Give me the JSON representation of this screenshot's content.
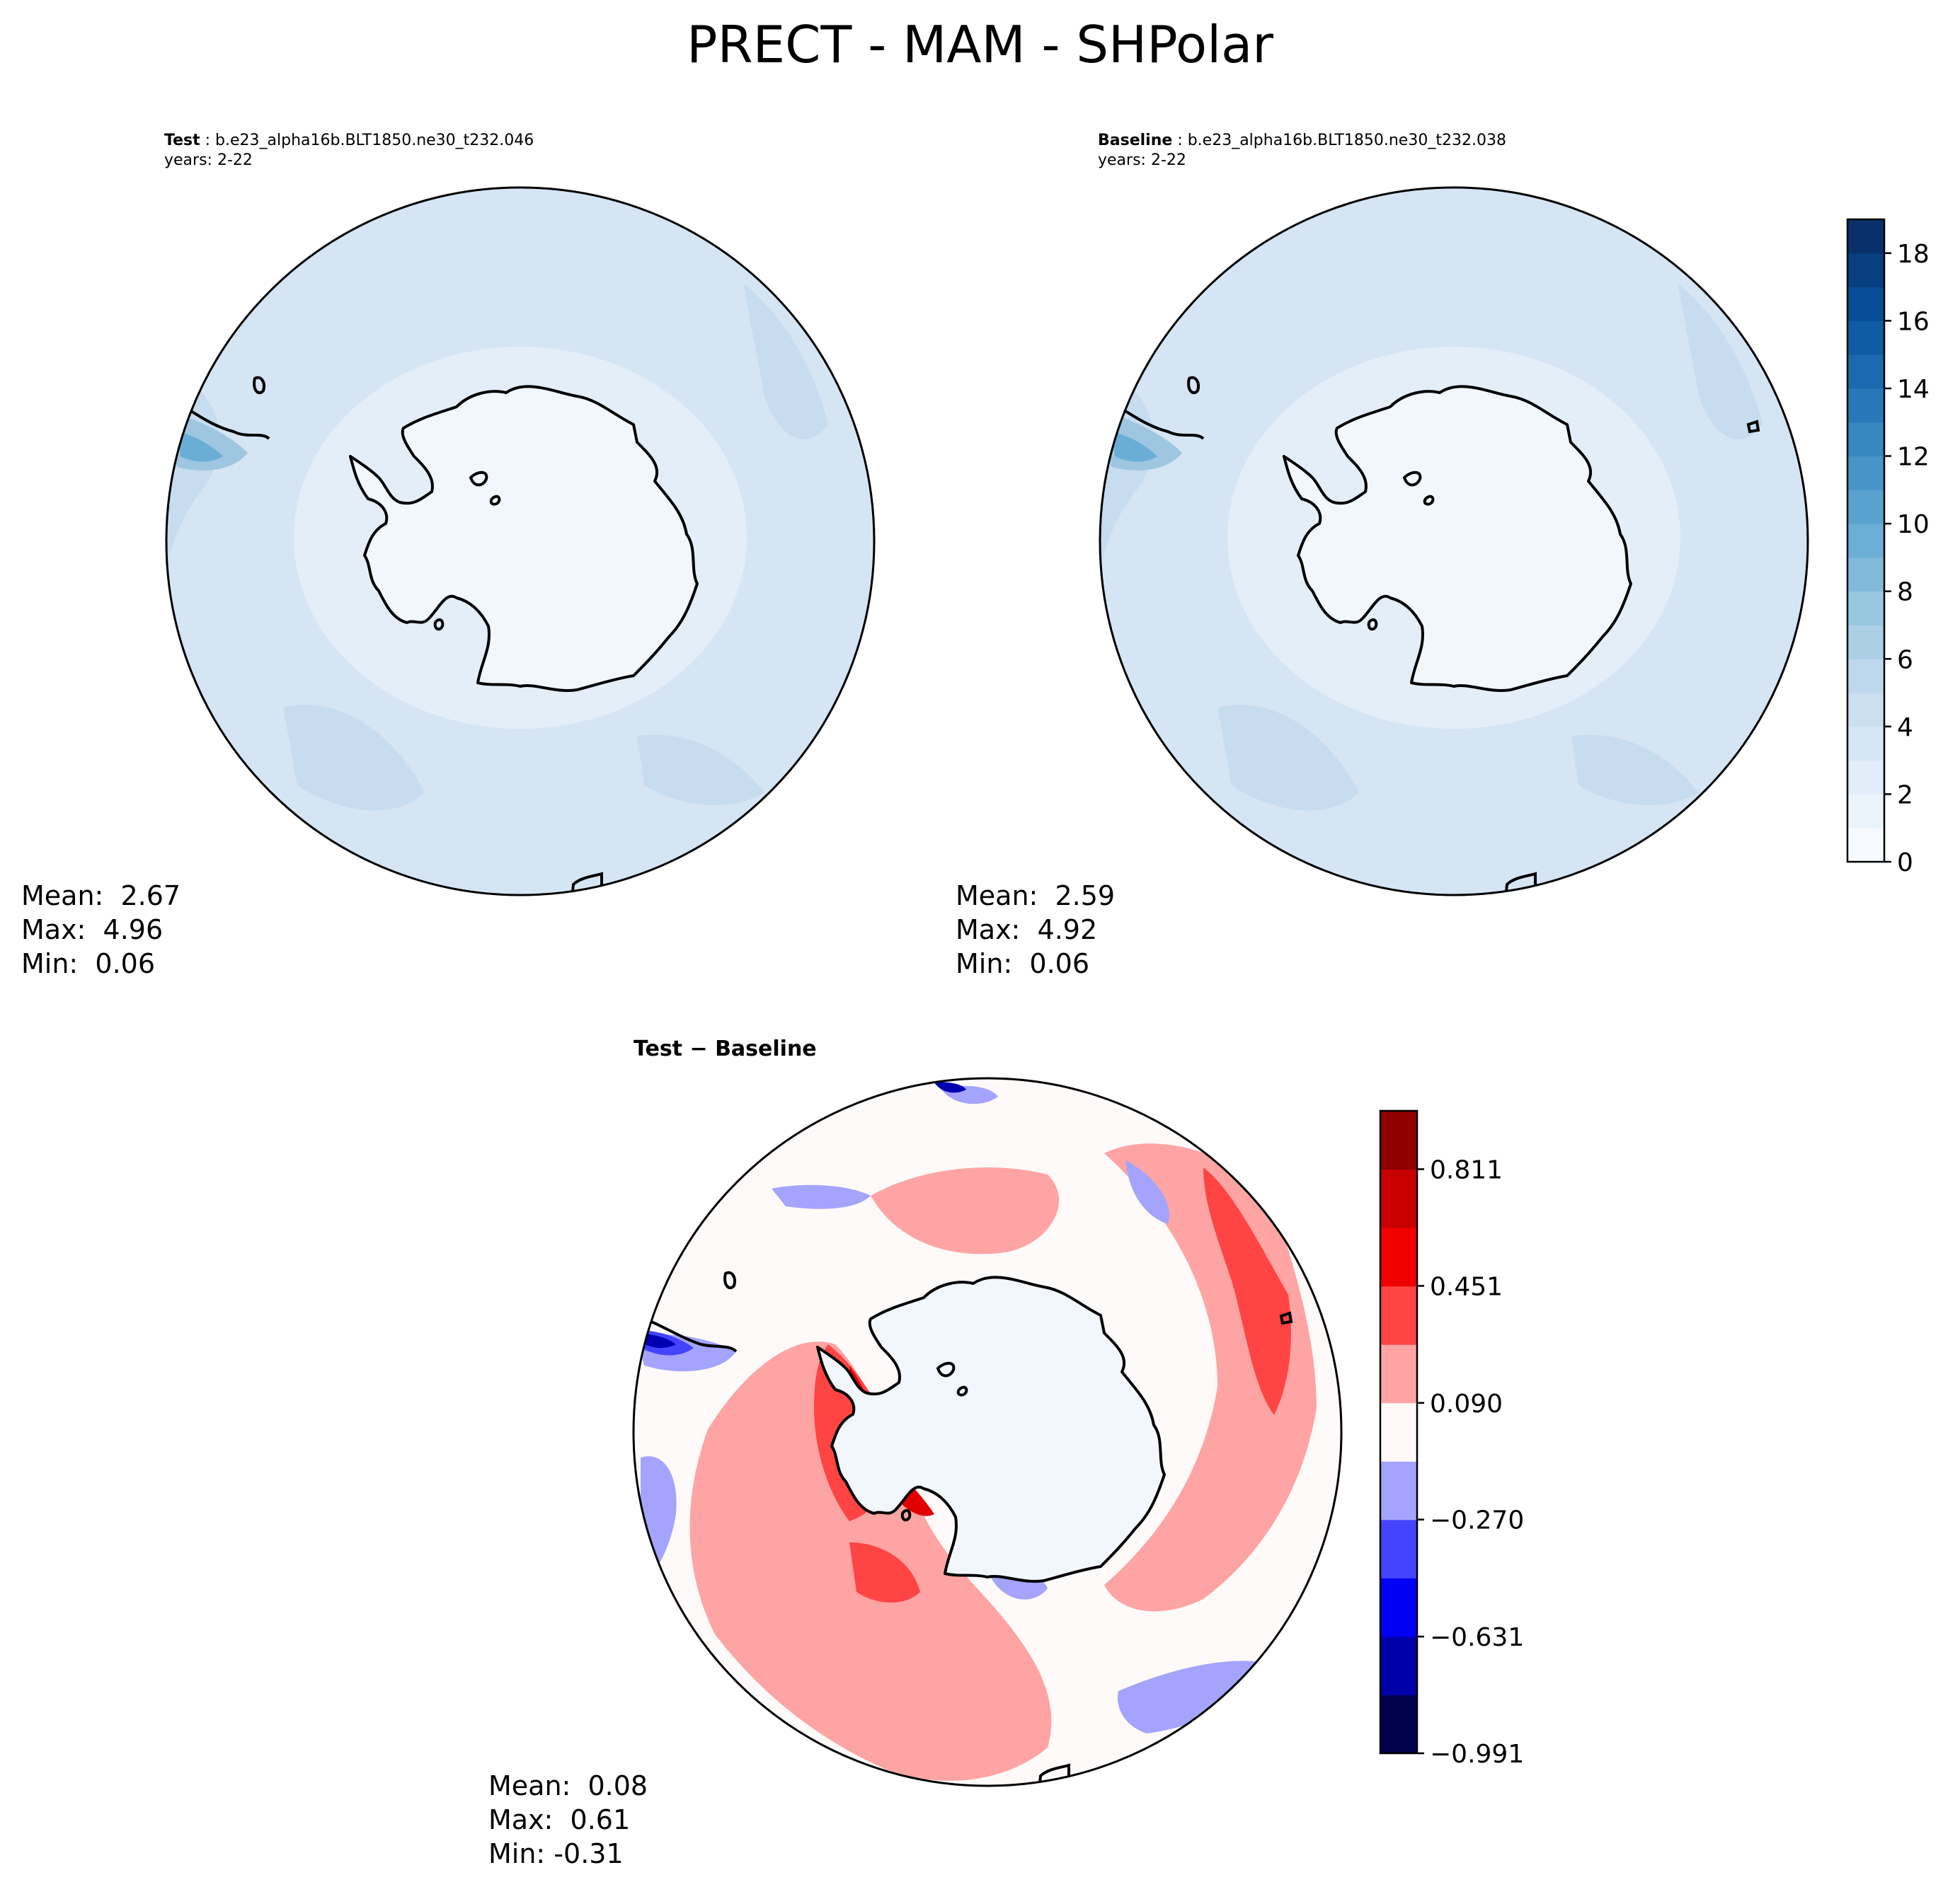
{
  "figure": {
    "title": "PRECT - MAM - SHPolar"
  },
  "panels": {
    "test": {
      "label": "Test",
      "case": "b.e23_alpha16b.BLT1850.ne30_t232.046",
      "years": "years: 2-22",
      "mean_label": "Mean:  2.67",
      "max_label": "Max:  4.96",
      "min_label": "Min:  0.06"
    },
    "baseline": {
      "label": "Baseline",
      "case": "b.e23_alpha16b.BLT1850.ne30_t232.038",
      "years": "years: 2-22",
      "mean_label": "Mean:  2.59",
      "max_label": "Max:  4.92",
      "min_label": "Min:  0.06"
    },
    "diff": {
      "title_left": "Test",
      "title_sep": " − ",
      "title_right": "Baseline",
      "mean_label": "Mean:  0.08",
      "max_label": "Max:  0.61",
      "min_label": "Min: -0.31"
    }
  },
  "chart_data": [
    {
      "type": "heatmap",
      "projection": "south-polar-stereographic",
      "title": "Test : b.e23_alpha16b.BLT1850.ne30_t232.046",
      "subtitle": "years: 2-22",
      "variable": "PRECT",
      "season": "MAM",
      "region": "SHPolar",
      "stats": {
        "mean": 2.67,
        "max": 4.96,
        "min": 0.06
      }
    },
    {
      "type": "heatmap",
      "projection": "south-polar-stereographic",
      "title": "Baseline : b.e23_alpha16b.BLT1850.ne30_t232.038",
      "subtitle": "years: 2-22",
      "variable": "PRECT",
      "season": "MAM",
      "region": "SHPolar",
      "stats": {
        "mean": 2.59,
        "max": 4.92,
        "min": 0.06
      },
      "colorbar": {
        "range": [
          0,
          19
        ],
        "ticks": [
          0,
          2,
          4,
          6,
          8,
          10,
          12,
          14,
          16,
          18
        ],
        "colormap": "Blues",
        "levels": 19
      }
    },
    {
      "type": "heatmap",
      "projection": "south-polar-stereographic",
      "title": "Test − Baseline",
      "variable": "PRECT",
      "season": "MAM",
      "region": "SHPolar",
      "stats": {
        "mean": 0.08,
        "max": 0.61,
        "min": -0.31
      },
      "colorbar": {
        "range": [
          -0.991,
          0.991
        ],
        "ticks": [
          -0.991,
          -0.631,
          -0.27,
          0.09,
          0.451,
          0.811
        ],
        "tick_labels": [
          "−0.991",
          "−0.631",
          "−0.270",
          "0.090",
          "0.451",
          "0.811"
        ],
        "colormap": "seismic",
        "level_colors": [
          "#00004c",
          "#0000a8",
          "#0000f4",
          "#4444ff",
          "#a4a4ff",
          "#fffafa",
          "#ffa4a4",
          "#ff4444",
          "#f00000",
          "#c80000",
          "#900000"
        ]
      }
    }
  ],
  "colors": {
    "ocean_light": "#d2e2f2",
    "ocean_mid": "#c6dbef",
    "ocean_dark": "#aed1e6",
    "land": "#f2f7fd",
    "coast": "#000000",
    "diff_pos1": "#ffa4a4",
    "diff_pos2": "#ff4444",
    "diff_pos3": "#e00000",
    "diff_neg1": "#a4a4ff",
    "diff_neg2": "#4444ff",
    "diff_neg3": "#0000b0"
  }
}
